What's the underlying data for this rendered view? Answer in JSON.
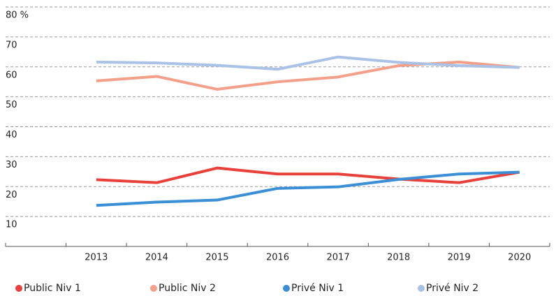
{
  "chart_data": {
    "type": "line",
    "categories": [
      null,
      "2013",
      "2014",
      "2015",
      "2016",
      "2017",
      "2018",
      "2019",
      "2020"
    ],
    "series": [
      {
        "name": "Public Niv 1",
        "color": "#e8413c",
        "values": [
          null,
          22.3,
          21.3,
          26.2,
          24.2,
          24.2,
          22.5,
          21.3,
          24.8
        ]
      },
      {
        "name": "Public Niv 2",
        "color": "#f2a08a",
        "values": [
          null,
          55.3,
          56.8,
          52.5,
          55.0,
          56.6,
          60.4,
          61.6,
          59.8
        ]
      },
      {
        "name": "Privé Niv 1",
        "color": "#3b8fd4",
        "values": [
          null,
          13.7,
          14.8,
          15.5,
          19.4,
          19.9,
          22.4,
          24.2,
          24.8
        ]
      },
      {
        "name": "Privé Niv 2",
        "color": "#a9c2e5",
        "values": [
          null,
          61.6,
          61.3,
          60.5,
          59.2,
          63.3,
          61.5,
          60.4,
          59.8
        ]
      }
    ],
    "ylim": [
      0,
      80
    ],
    "yticks": [
      10,
      20,
      30,
      40,
      50,
      60,
      70,
      {
        "value": 80,
        "label": "80 %"
      }
    ],
    "grid": true,
    "legend": "bottom"
  }
}
